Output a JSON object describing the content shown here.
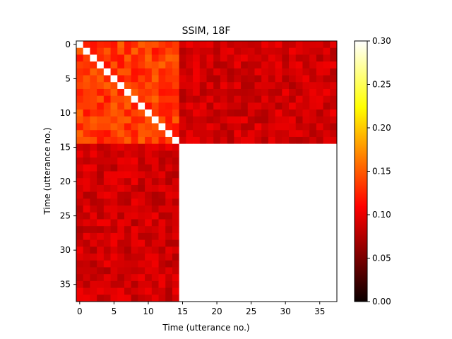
{
  "chart_data": {
    "type": "heatmap",
    "title": "SSIM, 18F",
    "xlabel": "Time (utterance no.)",
    "ylabel": "Time (utterance no.)",
    "n": 38,
    "block_size": 15,
    "approx_values": {
      "diagonal": 0.3,
      "within_first_block": 0.135,
      "cross_blocks": 0.085,
      "within_second_block": 0.3
    },
    "x_ticks": [
      0,
      5,
      10,
      15,
      20,
      25,
      30,
      35
    ],
    "y_ticks": [
      0,
      5,
      10,
      15,
      20,
      25,
      30,
      35
    ],
    "xlim": [
      -0.5,
      37.5
    ],
    "ylim": [
      37.5,
      -0.5
    ],
    "colormap": "hot",
    "colorbar": {
      "min": 0.0,
      "max": 0.3,
      "ticks": [
        "0.00",
        "0.05",
        "0.10",
        "0.15",
        "0.20",
        "0.25",
        "0.30"
      ]
    },
    "grid": false
  }
}
